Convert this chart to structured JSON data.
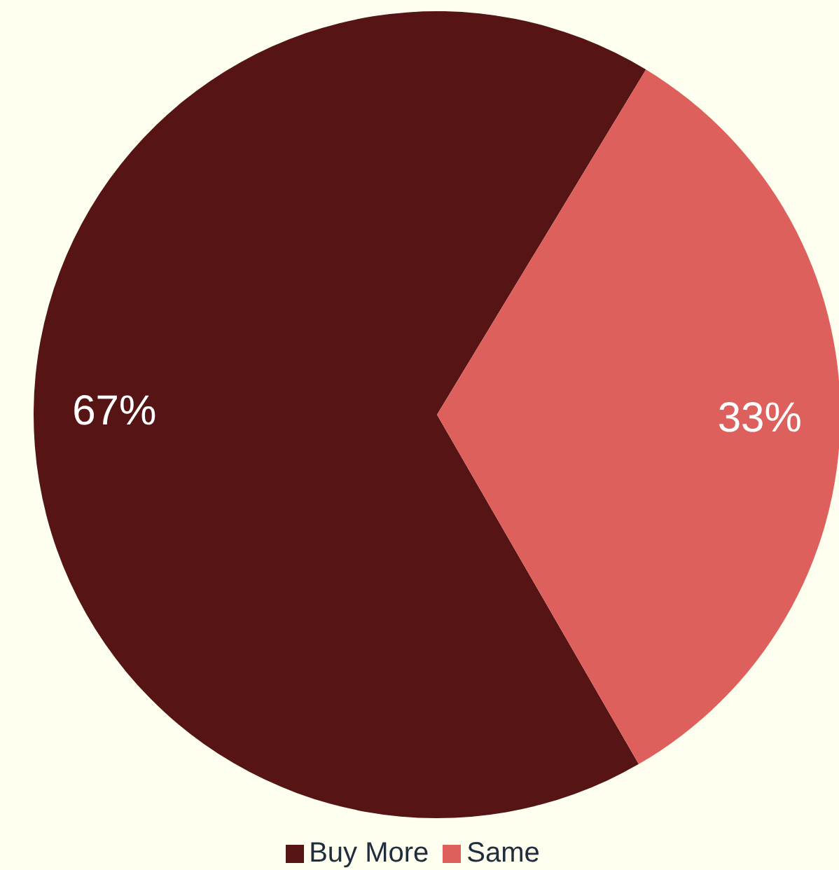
{
  "chart_data": {
    "type": "pie",
    "categories": [
      "Buy More",
      "Same"
    ],
    "values": [
      67,
      33
    ],
    "colors": [
      "#561414",
      "#dd605c"
    ],
    "value_labels": [
      "67%",
      "33%"
    ],
    "legend": "bottom"
  }
}
